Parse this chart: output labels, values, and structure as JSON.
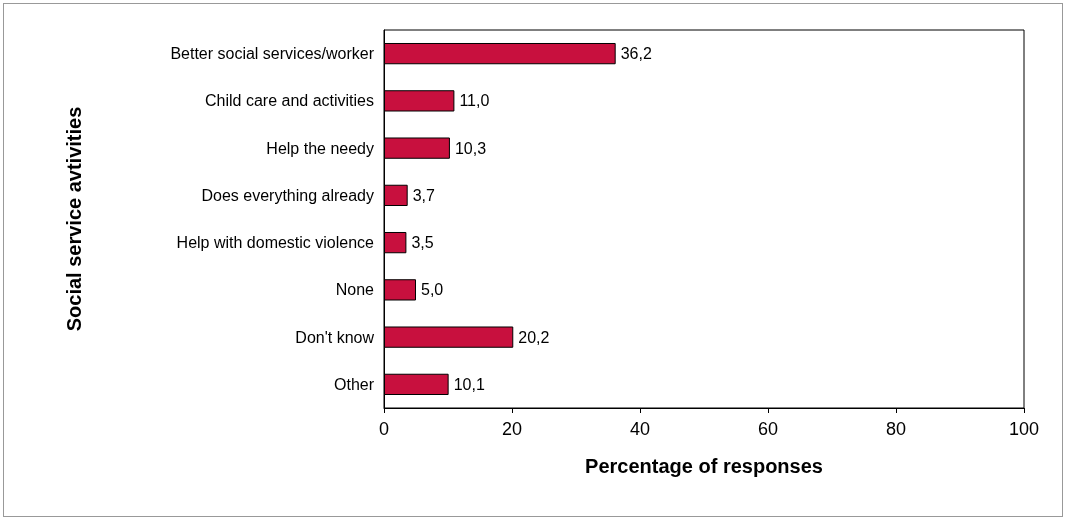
{
  "chart_data": {
    "type": "bar",
    "orientation": "horizontal",
    "xlabel": "Percentage of responses",
    "ylabel": "Social service avtivities",
    "categories": [
      "Better social services/worker",
      "Child care and activities",
      "Help the needy",
      "Does everything already",
      "Help with domestic violence",
      "None",
      "Don't know",
      "Other"
    ],
    "values": [
      36.2,
      11.0,
      10.3,
      3.7,
      3.5,
      5.0,
      20.2,
      10.1
    ],
    "value_labels": [
      "36,2",
      "11,0",
      "10,3",
      "3,7",
      "3,5",
      "5,0",
      "20,2",
      "10,1"
    ],
    "color": "#c8103e",
    "xlim": [
      0,
      100
    ],
    "xticks": [
      0,
      20,
      40,
      60,
      80,
      100
    ],
    "grid": false
  }
}
